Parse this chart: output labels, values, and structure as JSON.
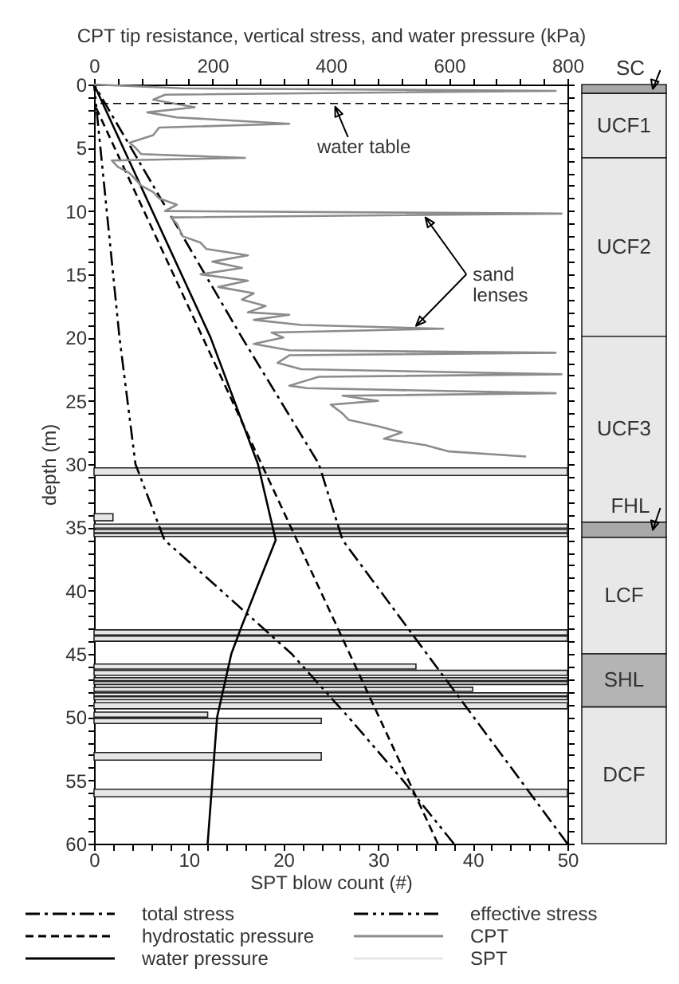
{
  "chart_data": [
    {
      "type": "line",
      "xlabel": "SPT blow count (#)",
      "x2label": "CPT tip resistance, vertical stress, and water pressure (kPa)",
      "ylabel": "depth (m)",
      "xlim": [
        0,
        50
      ],
      "x2lim": [
        0,
        800
      ],
      "ylim": [
        60,
        0
      ],
      "orientation": "horizontal",
      "xticks": [
        0,
        {
          "value": 2,
          "label": null
        },
        {
          "value": 4,
          "label": null
        },
        {
          "value": 6,
          "label": null
        },
        {
          "value": 8,
          "label": null
        },
        10,
        {
          "value": 12,
          "label": null
        },
        {
          "value": 14,
          "label": null
        },
        {
          "value": 16,
          "label": null
        },
        {
          "value": 18,
          "label": null
        },
        20,
        {
          "value": 22,
          "label": null
        },
        {
          "value": 24,
          "label": null
        },
        {
          "value": 26,
          "label": null
        },
        {
          "value": 28,
          "label": null
        },
        30,
        {
          "value": 32,
          "label": null
        },
        {
          "value": 34,
          "label": null
        },
        {
          "value": 36,
          "label": null
        },
        {
          "value": 38,
          "label": null
        },
        40,
        {
          "value": 42,
          "label": null
        },
        {
          "value": 44,
          "label": null
        },
        {
          "value": 46,
          "label": null
        },
        {
          "value": 48,
          "label": null
        },
        50
      ],
      "x2ticks": [
        0,
        {
          "value": 40,
          "label": null
        },
        {
          "value": 80,
          "label": null
        },
        {
          "value": 120,
          "label": null
        },
        {
          "value": 160,
          "label": null
        },
        200,
        {
          "value": 240,
          "label": null
        },
        {
          "value": 280,
          "label": null
        },
        {
          "value": 320,
          "label": null
        },
        {
          "value": 360,
          "label": null
        },
        400,
        {
          "value": 440,
          "label": null
        },
        {
          "value": 480,
          "label": null
        },
        {
          "value": 520,
          "label": null
        },
        {
          "value": 560,
          "label": null
        },
        600,
        {
          "value": 640,
          "label": null
        },
        {
          "value": 680,
          "label": null
        },
        {
          "value": 720,
          "label": null
        },
        {
          "value": 760,
          "label": null
        },
        800
      ],
      "yticks": [
        0,
        {
          "value": 1,
          "label": null
        },
        {
          "value": 2,
          "label": null
        },
        {
          "value": 3,
          "label": null
        },
        {
          "value": 4,
          "label": null
        },
        5,
        {
          "value": 6,
          "label": null
        },
        {
          "value": 7,
          "label": null
        },
        {
          "value": 8,
          "label": null
        },
        {
          "value": 9,
          "label": null
        },
        10,
        {
          "value": 11,
          "label": null
        },
        {
          "value": 12,
          "label": null
        },
        {
          "value": 13,
          "label": null
        },
        {
          "value": 14,
          "label": null
        },
        15,
        {
          "value": 16,
          "label": null
        },
        {
          "value": 17,
          "label": null
        },
        {
          "value": 18,
          "label": null
        },
        {
          "value": 19,
          "label": null
        },
        20,
        {
          "value": 21,
          "label": null
        },
        {
          "value": 22,
          "label": null
        },
        {
          "value": 23,
          "label": null
        },
        {
          "value": 24,
          "label": null
        },
        25,
        {
          "value": 26,
          "label": null
        },
        {
          "value": 27,
          "label": null
        },
        {
          "value": 28,
          "label": null
        },
        {
          "value": 29,
          "label": null
        },
        30,
        {
          "value": 31,
          "label": null
        },
        {
          "value": 32,
          "label": null
        },
        {
          "value": 33,
          "label": null
        },
        {
          "value": 34,
          "label": null
        },
        35,
        {
          "value": 36,
          "label": null
        },
        {
          "value": 37,
          "label": null
        },
        {
          "value": 38,
          "label": null
        },
        {
          "value": 39,
          "label": null
        },
        40,
        {
          "value": 41,
          "label": null
        },
        {
          "value": 42,
          "label": null
        },
        {
          "value": 43,
          "label": null
        },
        {
          "value": 44,
          "label": null
        },
        45,
        {
          "value": 46,
          "label": null
        },
        {
          "value": 47,
          "label": null
        },
        {
          "value": 48,
          "label": null
        },
        {
          "value": 49,
          "label": null
        },
        50,
        {
          "value": 51,
          "label": null
        },
        {
          "value": 52,
          "label": null
        },
        {
          "value": 53,
          "label": null
        },
        {
          "value": 54,
          "label": null
        },
        55,
        {
          "value": 56,
          "label": null
        },
        {
          "value": 57,
          "label": null
        },
        {
          "value": 58,
          "label": null
        },
        {
          "value": 59,
          "label": null
        },
        60
      ],
      "legend": "bottom",
      "grid": false,
      "series": [
        {
          "name": "total stress",
          "type": "line",
          "axis": "x2",
          "color": "#000000",
          "line_style": "dashdot",
          "values": [
            0,
            250,
            380,
            420,
            800
          ],
          "x": [
            0,
            20,
            30,
            36,
            60
          ]
        },
        {
          "name": "hydrostatic pressure",
          "type": "line",
          "axis": "x2",
          "color": "#000000",
          "line_style": "dashed",
          "values": [
            0,
            581
          ],
          "x": [
            1.5,
            60
          ]
        },
        {
          "name": "water pressure",
          "type": "line",
          "axis": "x2",
          "color": "#000000",
          "line_style": "solid",
          "values": [
            0,
            197,
            277,
            307,
            273,
            248,
            232,
            208,
            200,
            192
          ],
          "x": [
            0,
            20,
            30,
            36,
            40,
            43,
            45,
            50,
            55,
            60
          ]
        },
        {
          "name": "effective stress",
          "type": "line",
          "axis": "x2",
          "color": "#000000",
          "line_style": "dashdotdot",
          "values": [
            0,
            43,
            70,
            119,
            215,
            334,
            430,
            522,
            608
          ],
          "x": [
            0,
            20,
            30,
            36,
            40,
            45,
            50,
            55,
            60
          ]
        },
        {
          "name": "CPT",
          "type": "line",
          "axis": "x2",
          "color": "#8c8c8c",
          "line_style": "solid",
          "values": [
            0,
            150,
            780,
            120,
            100,
            170,
            90,
            140,
            330,
            110,
            100,
            60,
            70,
            80,
            255,
            30,
            40,
            60,
            70,
            80,
            100,
            110,
            140,
            120,
            790,
            130,
            140,
            150,
            180,
            190,
            260,
            200,
            250,
            180,
            260,
            210,
            270,
            250,
            290,
            260,
            330,
            270,
            350,
            590,
            300,
            320,
            270,
            330,
            780,
            330,
            310,
            350,
            790,
            380,
            330,
            360,
            780,
            420,
            480,
            400,
            420,
            430,
            480,
            520,
            490,
            560,
            600,
            730
          ],
          "x": [
            0,
            0.3,
            0.5,
            0.8,
            1.2,
            1.8,
            2.2,
            2.6,
            3.1,
            3.4,
            4,
            4.6,
            5,
            5.5,
            5.8,
            6,
            6.5,
            7,
            7.5,
            8,
            8.5,
            9,
            9.5,
            10,
            10.2,
            10.5,
            11,
            12,
            12.5,
            13,
            13.5,
            14,
            14.5,
            15,
            15.5,
            16,
            16.5,
            17,
            17.5,
            18,
            18.2,
            18.6,
            19,
            19.3,
            19.6,
            20,
            20.5,
            21,
            21.2,
            21.4,
            22,
            22.5,
            22.9,
            23.1,
            23.8,
            24,
            24.4,
            24.6,
            25,
            25.3,
            26,
            26.5,
            27,
            27.5,
            28,
            28.5,
            29,
            29.4
          ]
        },
        {
          "name": "SPT",
          "type": "bar",
          "color": "#e6e6e6",
          "x": [
            30.6,
            34.2,
            34.9,
            35.3,
            35.6,
            43.3,
            43.8,
            46,
            46.5,
            47,
            47.3,
            47.8,
            48.2,
            48.5,
            49.1,
            49.8,
            50.3,
            53.1,
            56
          ],
          "values": [
            50,
            2,
            50,
            50,
            50,
            50,
            50,
            34,
            50,
            50,
            50,
            40,
            50,
            50,
            50,
            12,
            24,
            24,
            50
          ]
        }
      ],
      "ref_lines": [
        {
          "axis": "y",
          "value": 1.5,
          "label": "water table",
          "line_style": "dashed"
        }
      ],
      "annotations": [
        "sand lenses"
      ]
    },
    {
      "type": "bar",
      "stacked": true,
      "categories": [
        null
      ],
      "ylim": [
        60,
        0
      ],
      "tick_labels": false,
      "series": [
        {
          "name": "SC",
          "color": "#a8a8a8",
          "values": [
            0.7
          ]
        },
        {
          "name": "UCF1",
          "color": "#e8e8e8",
          "values": [
            5.1
          ]
        },
        {
          "name": "UCF2",
          "color": "#e8e8e8",
          "values": [
            14.1
          ]
        },
        {
          "name": "UCF3",
          "color": "#e8e8e8",
          "values": [
            14.7
          ]
        },
        {
          "name": "FHL",
          "color": "#a8a8a8",
          "values": [
            1.2
          ]
        },
        {
          "name": "LCF",
          "color": "#e8e8e8",
          "values": [
            9.2
          ]
        },
        {
          "name": "SHL",
          "color": "#b4b4b4",
          "values": [
            4.2
          ]
        },
        {
          "name": "DCF",
          "color": "#e8e8e8",
          "values": [
            10.8
          ]
        }
      ]
    }
  ]
}
